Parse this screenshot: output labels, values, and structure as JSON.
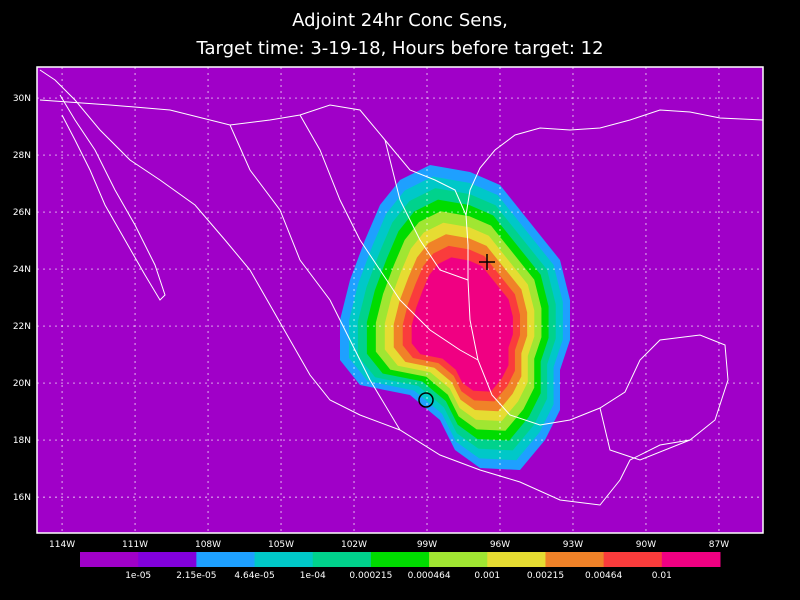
{
  "chart_data": {
    "type": "map",
    "title": [
      "Adjoint 24hr Conc Sens,",
      "Target time: 3-19-18, Hours before target: 12"
    ],
    "xlim": [
      -115.03,
      -85.19
    ],
    "ylim": [
      14.74,
      31.09
    ],
    "xticks": [
      {
        "value": -114,
        "label": "114W"
      },
      {
        "value": -111,
        "label": "111W"
      },
      {
        "value": -108,
        "label": "108W"
      },
      {
        "value": -105,
        "label": "105W"
      },
      {
        "value": -102,
        "label": "102W"
      },
      {
        "value": -99,
        "label": "99W"
      },
      {
        "value": -96,
        "label": "96W"
      },
      {
        "value": -93,
        "label": "93W"
      },
      {
        "value": -90,
        "label": "90W"
      },
      {
        "value": -87,
        "label": "87W"
      }
    ],
    "yticks": [
      {
        "value": 16,
        "label": "16N"
      },
      {
        "value": 18,
        "label": "18N"
      },
      {
        "value": 20,
        "label": "20N"
      },
      {
        "value": 22,
        "label": "22N"
      },
      {
        "value": 24,
        "label": "24N"
      },
      {
        "value": 26,
        "label": "26N"
      },
      {
        "value": 28,
        "label": "28N"
      },
      {
        "value": 30,
        "label": "30N"
      }
    ],
    "grid": true,
    "colorbar": {
      "colors": [
        "#a000c8",
        "#8200dc",
        "#1ea0ff",
        "#00c8c8",
        "#00d28c",
        "#00dc00",
        "#a0e632",
        "#e6dc32",
        "#f08228",
        "#fa3c3c",
        "#f00082"
      ],
      "levels": [
        {
          "value": 1e-05,
          "label": "1e-05"
        },
        {
          "value": 2.15e-05,
          "label": "2.15e-05"
        },
        {
          "value": 4.64e-05,
          "label": "4.64e-05"
        },
        {
          "value": 0.0001,
          "label": "1e-04"
        },
        0.000215,
        0.000464,
        0.001,
        0.00215,
        0.00464,
        0.01
      ]
    }
  }
}
